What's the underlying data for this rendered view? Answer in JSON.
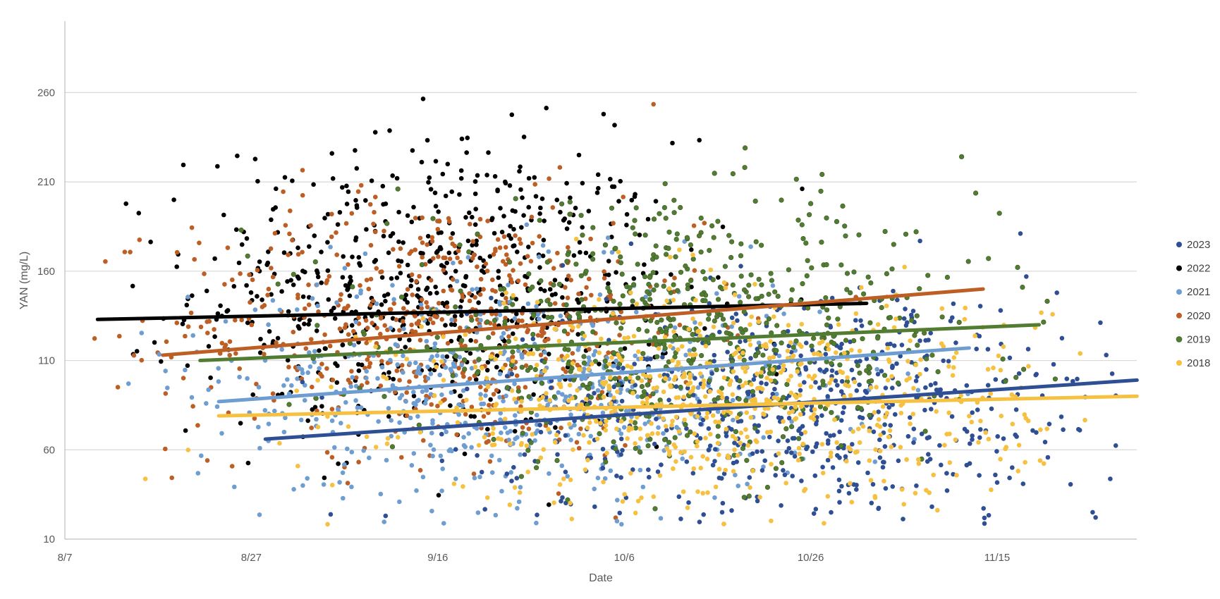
{
  "chart_data": {
    "type": "scatter",
    "title": "",
    "xlabel": "Date",
    "ylabel": "YAN (mg/L)",
    "x_ticks": [
      "8/7",
      "8/27",
      "9/16",
      "10/6",
      "10/26",
      "11/15"
    ],
    "x_tick_days": [
      0,
      20,
      40,
      60,
      80,
      100
    ],
    "x_range_days": [
      0,
      115
    ],
    "ylim": [
      10,
      300
    ],
    "y_ticks": [
      10,
      60,
      110,
      160,
      210,
      260
    ],
    "grid": "horizontal",
    "legend": "right",
    "series": [
      {
        "name": "2023",
        "color": "#2F4F94",
        "center": [
          80,
          82
        ],
        "spread": [
          17,
          34
        ],
        "count": 650,
        "trend": {
          "x": [
            21.5,
            115
          ],
          "y": [
            66,
            99
          ]
        }
      },
      {
        "name": "2022",
        "color": "#000000",
        "center": [
          40,
          150
        ],
        "spread": [
          13,
          42
        ],
        "count": 650,
        "trend": {
          "x": [
            3.5,
            86
          ],
          "y": [
            133,
            142
          ]
        }
      },
      {
        "name": "2021",
        "color": "#6E9DD1",
        "center": [
          48,
          94
        ],
        "spread": [
          17,
          32
        ],
        "count": 620,
        "trend": {
          "x": [
            16.5,
            97
          ],
          "y": [
            87,
            117
          ]
        }
      },
      {
        "name": "2020",
        "color": "#BD5F24",
        "center": [
          40,
          130
        ],
        "spread": [
          14,
          36
        ],
        "count": 600,
        "trend": {
          "x": [
            10.5,
            98.5
          ],
          "y": [
            113,
            150
          ]
        }
      },
      {
        "name": "2019",
        "color": "#517C31",
        "center": [
          67,
          125
        ],
        "spread": [
          16,
          35
        ],
        "count": 650,
        "trend": {
          "x": [
            14.5,
            104.5
          ],
          "y": [
            110,
            130
          ]
        }
      },
      {
        "name": "2018",
        "color": "#F6C140",
        "center": [
          70,
          88
        ],
        "spread": [
          17,
          30
        ],
        "count": 700,
        "trend": {
          "x": [
            16.5,
            115
          ],
          "y": [
            79,
            90
          ]
        }
      }
    ]
  }
}
